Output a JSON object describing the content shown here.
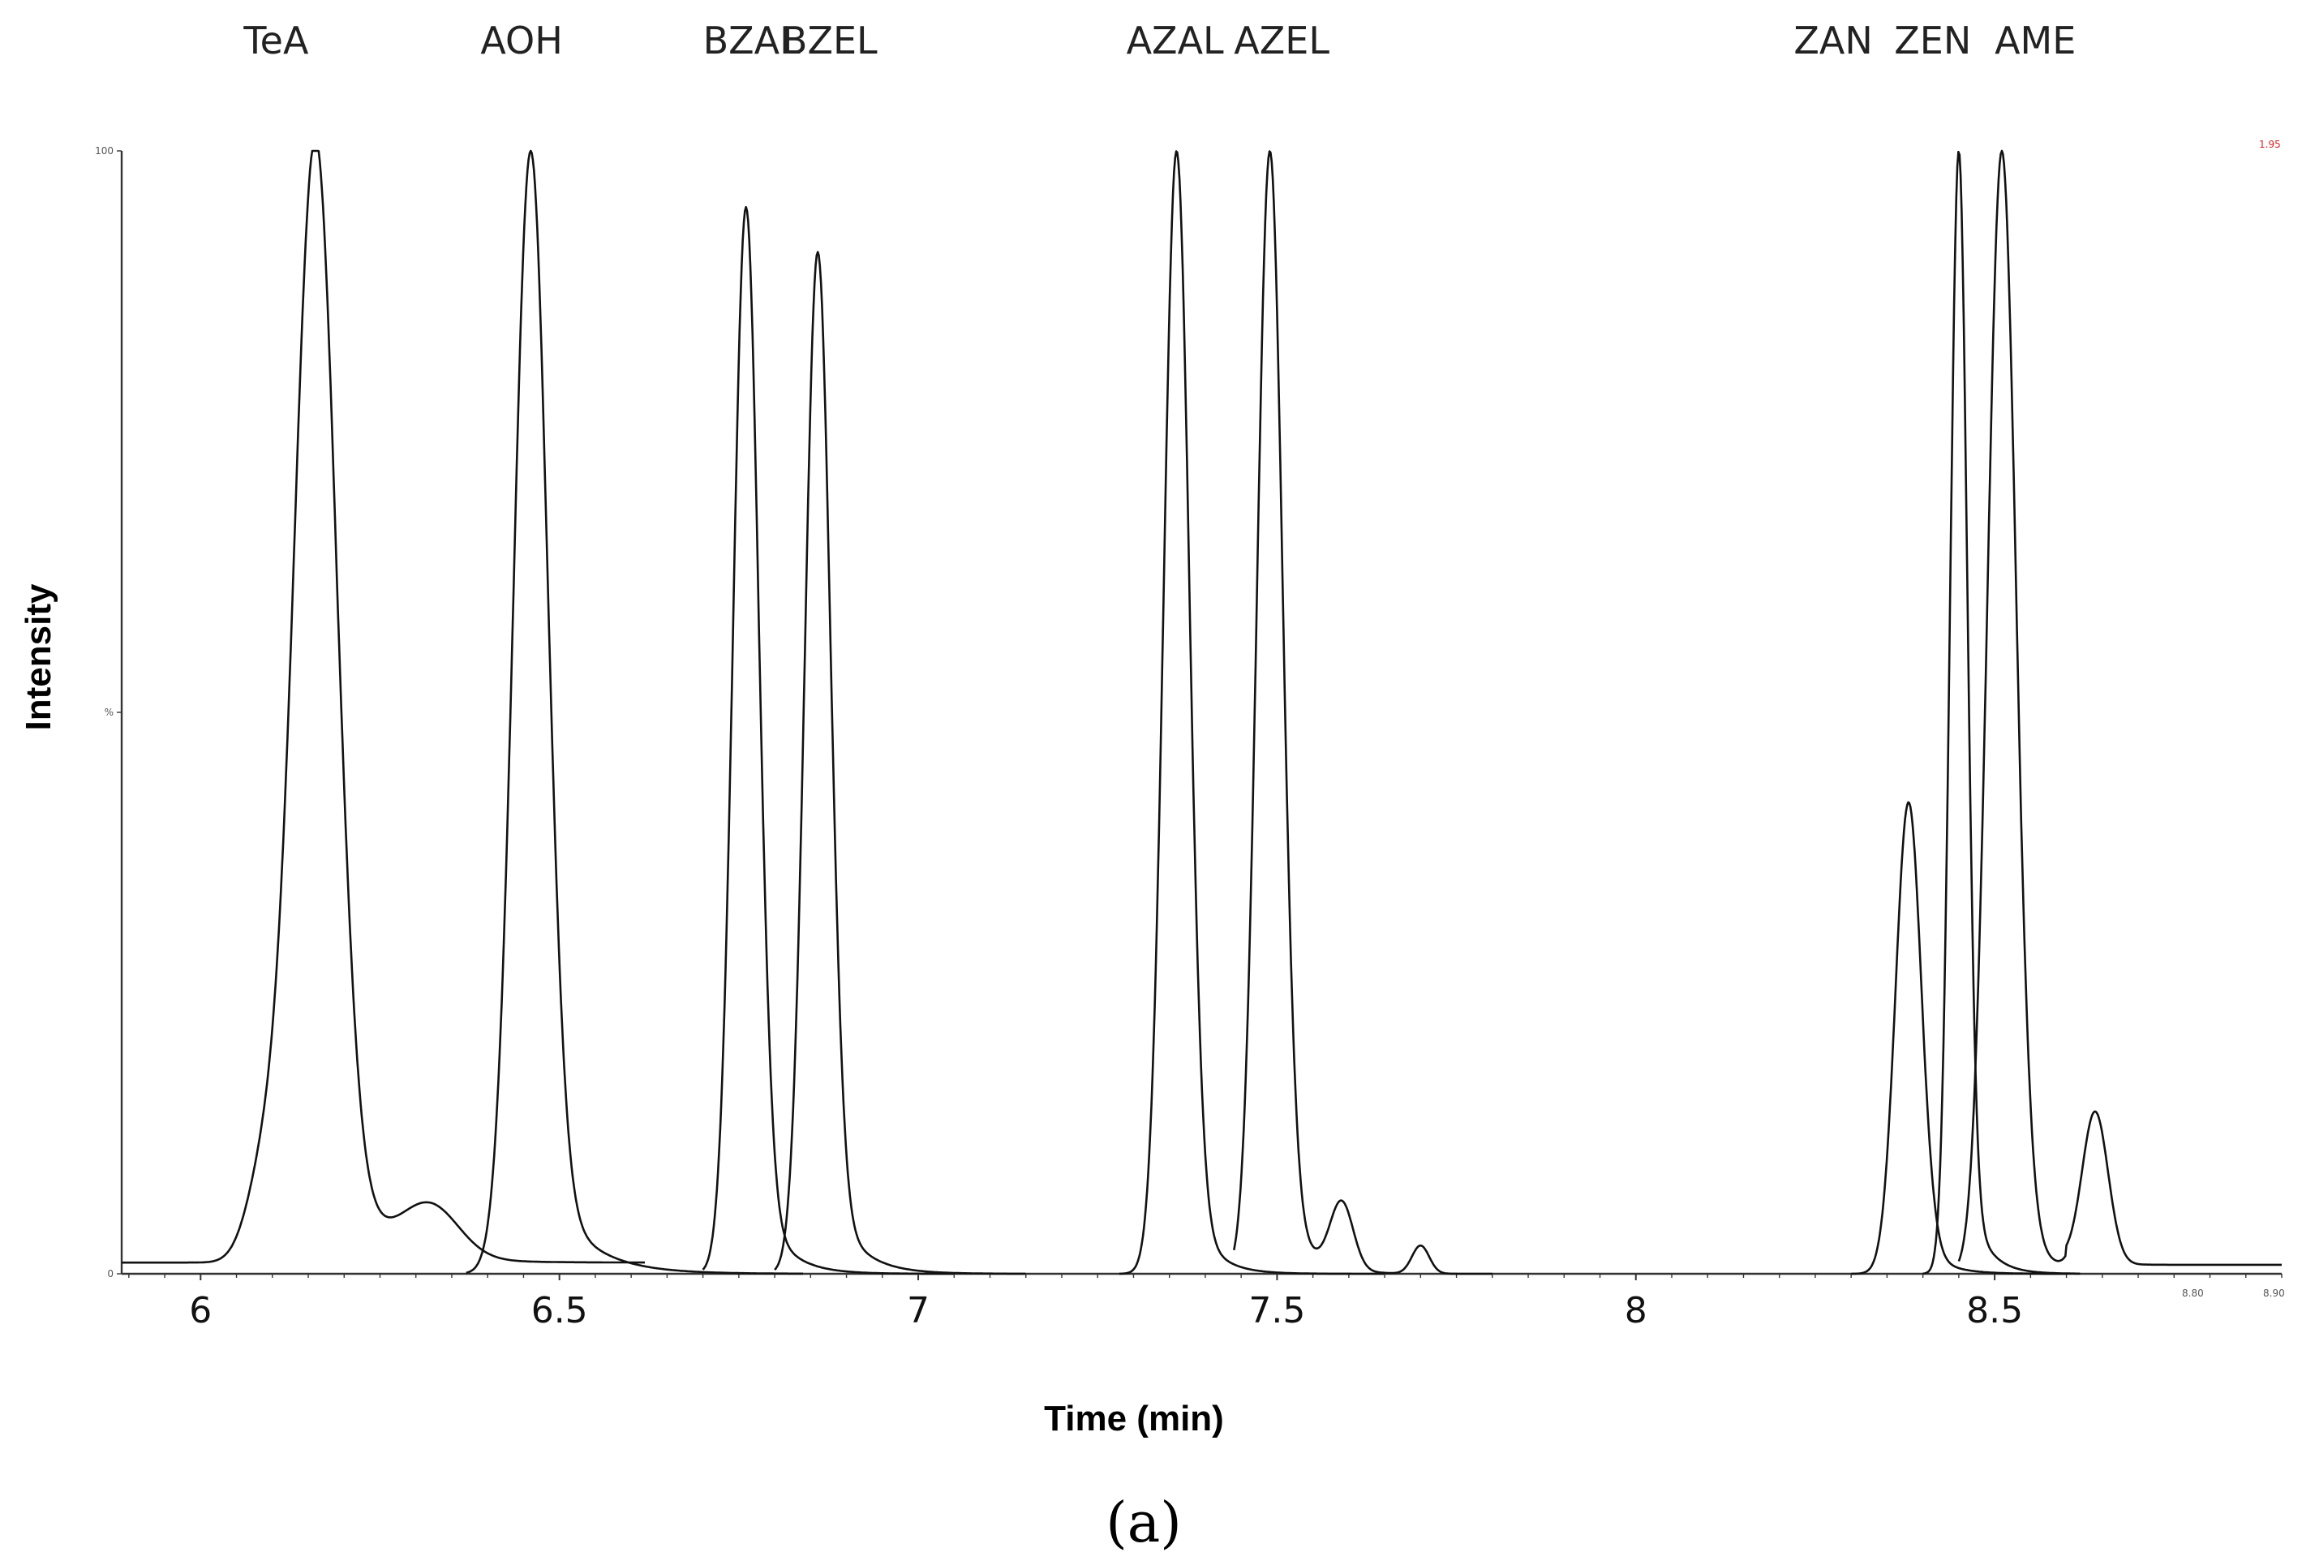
{
  "chart_data": {
    "type": "line",
    "title": "",
    "xlabel": "Time (min)",
    "ylabel": "Intensity",
    "xlim": [
      5.89,
      8.9
    ],
    "ylim": [
      0,
      100
    ],
    "x_ticks": [
      {
        "value": 6,
        "label": "6"
      },
      {
        "value": 6.5,
        "label": "6.5"
      },
      {
        "value": 7,
        "label": "7"
      },
      {
        "value": 7.5,
        "label": "7.5"
      },
      {
        "value": 8,
        "label": "8"
      },
      {
        "value": 8.5,
        "label": "8.5"
      }
    ],
    "y_ticks_small": [
      {
        "value": 100,
        "label": "100"
      },
      {
        "value": 50,
        "label": "%"
      },
      {
        "value": 0,
        "label": "0"
      }
    ],
    "corner_labels": {
      "x_left": "8.80",
      "x_right": "8.90",
      "y_right": "1.95"
    },
    "peaks": [
      {
        "name": "TeA",
        "rt": 6.16,
        "height": 100,
        "width": 0.03,
        "tail": 0.06,
        "label_x": 6.06
      },
      {
        "name": "AOH",
        "rt": 6.46,
        "height": 100,
        "width": 0.024,
        "tail": 0.055,
        "label_x": 6.39
      },
      {
        "name": "BZAL",
        "rt": 6.76,
        "height": 95,
        "width": 0.018,
        "tail": 0.035,
        "label_x": 6.7
      },
      {
        "name": "BZEL",
        "rt": 6.86,
        "height": 91,
        "width": 0.018,
        "tail": 0.038,
        "label_x": 6.81
      },
      {
        "name": "AZAL",
        "rt": 7.36,
        "height": 100,
        "width": 0.018,
        "tail": 0.03,
        "label_x": 7.29
      },
      {
        "name": "AZEL",
        "rt": 7.49,
        "height": 100,
        "width": 0.018,
        "tail": 0.032,
        "label_x": 7.44
      },
      {
        "name": "ZAN",
        "rt": 8.38,
        "height": 42,
        "width": 0.018,
        "tail": 0.03,
        "label_x": 8.22
      },
      {
        "name": "ZEN",
        "rt": 8.45,
        "height": 100,
        "width": 0.012,
        "tail": 0.025,
        "label_x": 8.36
      },
      {
        "name": "AME",
        "rt": 8.51,
        "height": 100,
        "width": 0.02,
        "tail": 0.03,
        "label_x": 8.5
      }
    ],
    "minor_features": [
      {
        "rt": 6.09,
        "height": 8,
        "width": 0.025
      },
      {
        "rt": 6.32,
        "height": 4.5,
        "width": 0.04
      },
      {
        "rt": 7.59,
        "height": 6,
        "width": 0.016
      },
      {
        "rt": 7.7,
        "height": 2.5,
        "width": 0.012
      },
      {
        "rt": 8.64,
        "height": 13.5,
        "width": 0.018
      }
    ],
    "grid": false,
    "legend": "none"
  },
  "caption": "(a)"
}
